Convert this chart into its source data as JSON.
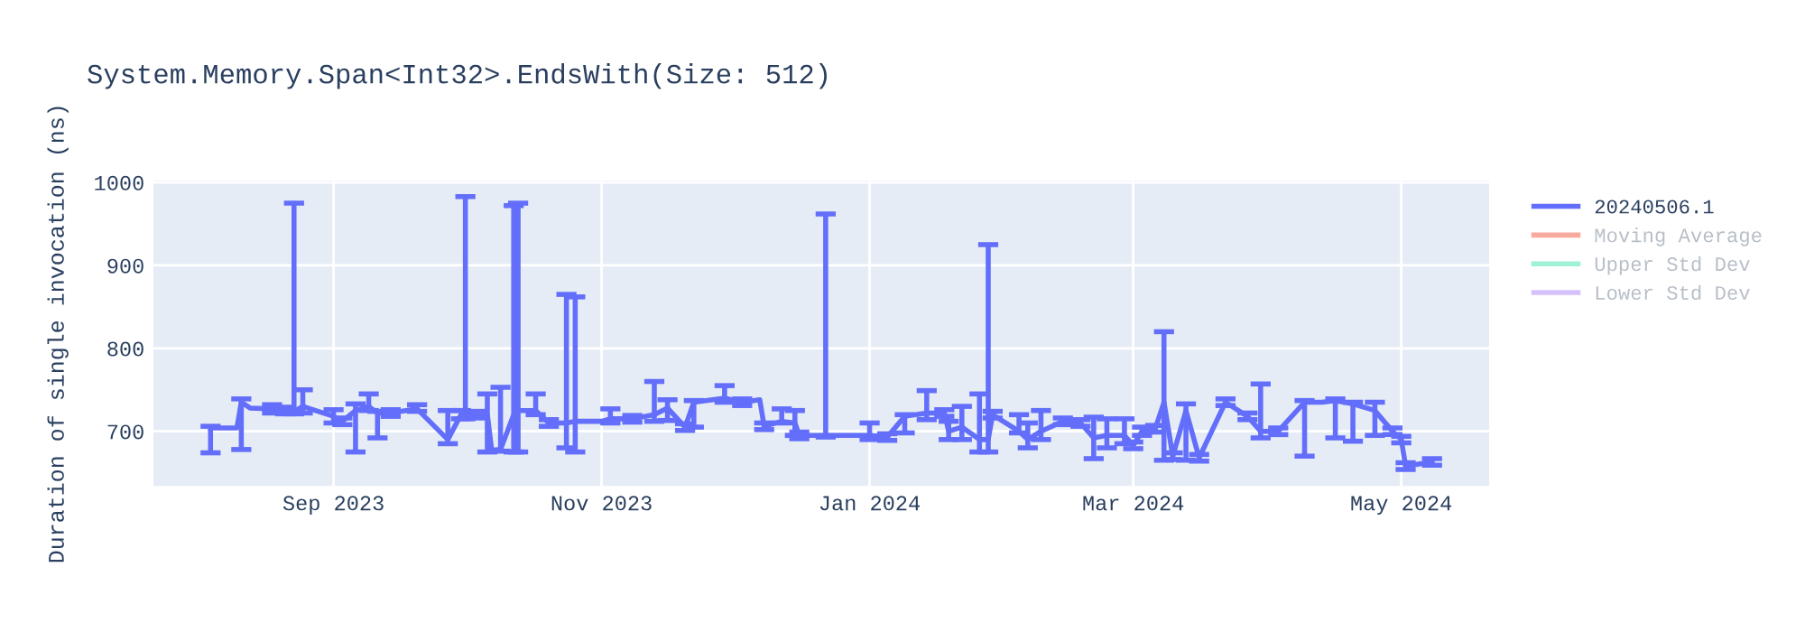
{
  "chart_data": {
    "type": "line",
    "title": "System.Memory.Span<Int32>.EndsWith(Size: 512)",
    "ylabel": "Duration of single invocation (ns)",
    "xlim": [
      "2023-07-22",
      "2024-05-21"
    ],
    "xticks": [
      {
        "value": "2023-09-01",
        "label": "Sep 2023"
      },
      {
        "value": "2023-11-01",
        "label": "Nov 2023"
      },
      {
        "value": "2024-01-01",
        "label": "Jan 2024"
      },
      {
        "value": "2024-03-01",
        "label": "Mar 2024"
      },
      {
        "value": "2024-05-01",
        "label": "May 2024"
      }
    ],
    "ylim": [
      634,
      1002
    ],
    "yticks": [
      700,
      800,
      900,
      1000
    ],
    "grid": true,
    "legend": "right",
    "marker": "none",
    "line_style": "solid",
    "series": [
      {
        "name": "20240506.1",
        "color": "#636efa",
        "x": [
          "2023-08-04",
          "2023-08-10",
          "2023-08-11",
          "2023-08-13",
          "2023-08-18",
          "2023-08-21",
          "2023-08-23",
          "2023-08-25",
          "2023-09-01",
          "2023-09-03",
          "2023-09-06",
          "2023-09-09",
          "2023-09-11",
          "2023-09-14",
          "2023-09-20",
          "2023-09-27",
          "2023-09-30",
          "2023-10-01",
          "2023-10-04",
          "2023-10-06",
          "2023-10-07",
          "2023-10-09",
          "2023-10-12",
          "2023-10-13",
          "2023-10-17",
          "2023-10-20",
          "2023-10-24",
          "2023-10-26",
          "2023-11-01",
          "2023-11-03",
          "2023-11-08",
          "2023-11-13",
          "2023-11-16",
          "2023-11-20",
          "2023-11-22",
          "2023-11-29",
          "2023-12-03",
          "2023-12-07",
          "2023-12-08",
          "2023-12-12",
          "2023-12-15",
          "2023-12-16",
          "2023-12-22",
          "2024-01-01",
          "2024-01-05",
          "2024-01-09",
          "2024-01-14",
          "2024-01-18",
          "2024-01-19",
          "2024-01-22",
          "2024-01-26",
          "2024-01-28",
          "2024-01-29",
          "2024-02-04",
          "2024-02-06",
          "2024-02-09",
          "2024-02-14",
          "2024-02-18",
          "2024-02-21",
          "2024-02-24",
          "2024-02-28",
          "2024-03-01",
          "2024-03-03",
          "2024-03-06",
          "2024-03-08",
          "2024-03-10",
          "2024-03-13",
          "2024-03-16",
          "2024-03-22",
          "2024-03-27",
          "2024-03-30",
          "2024-04-03",
          "2024-04-09",
          "2024-04-13",
          "2024-04-16",
          "2024-04-20",
          "2024-04-25",
          "2024-04-29",
          "2024-05-01",
          "2024-05-02",
          "2024-05-08"
        ],
        "values": [
          704,
          704,
          735,
          728,
          727,
          725,
          724,
          730,
          718,
          712,
          725,
          730,
          722,
          722,
          727,
          690,
          720,
          720,
          720,
          720,
          677,
          678,
          720,
          725,
          725,
          710,
          710,
          712,
          712,
          715,
          715,
          720,
          728,
          705,
          735,
          740,
          735,
          738,
          706,
          712,
          710,
          695,
          695,
          695,
          693,
          718,
          722,
          722,
          700,
          705,
          690,
          690,
          720,
          700,
          690,
          700,
          712,
          710,
          692,
          695,
          695,
          683,
          700,
          703,
          735,
          670,
          725,
          668,
          735,
          718,
          700,
          700,
          735,
          735,
          737,
          733,
          725,
          700,
          690,
          658,
          663
        ],
        "errors": [
          [
            674,
            706
          ],
          null,
          [
            678,
            739
          ],
          null,
          [
            722,
            732
          ],
          [
            721,
            729
          ],
          [
            721,
            975
          ],
          [
            722,
            750
          ],
          [
            710,
            726
          ],
          [
            708,
            716
          ],
          [
            675,
            733
          ],
          [
            725,
            745
          ],
          [
            692,
            724
          ],
          [
            718,
            726
          ],
          [
            724,
            732
          ],
          [
            685,
            725
          ],
          [
            715,
            725
          ],
          [
            715,
            983
          ],
          [
            716,
            724
          ],
          [
            675,
            745
          ],
          null,
          [
            676,
            753
          ],
          [
            675,
            972
          ],
          [
            675,
            975
          ],
          [
            720,
            745
          ],
          [
            706,
            714
          ],
          [
            680,
            865
          ],
          [
            675,
            862
          ],
          null,
          [
            710,
            727
          ],
          [
            711,
            719
          ],
          [
            712,
            760
          ],
          [
            713,
            738
          ],
          [
            701,
            709
          ],
          [
            705,
            737
          ],
          [
            735,
            755
          ],
          [
            731,
            739
          ],
          null,
          [
            702,
            710
          ],
          [
            710,
            727
          ],
          [
            695,
            725
          ],
          [
            691,
            699
          ],
          [
            693,
            962
          ],
          [
            690,
            710
          ],
          [
            689,
            697
          ],
          [
            698,
            720
          ],
          [
            714,
            749
          ],
          [
            718,
            726
          ],
          [
            690,
            712
          ],
          [
            690,
            730
          ],
          [
            675,
            745
          ],
          [
            675,
            925
          ],
          [
            716,
            724
          ],
          [
            698,
            720
          ],
          [
            680,
            710
          ],
          [
            690,
            725
          ],
          [
            708,
            716
          ],
          [
            706,
            714
          ],
          [
            667,
            717
          ],
          [
            680,
            715
          ],
          [
            685,
            715
          ],
          [
            679,
            687
          ],
          [
            695,
            705
          ],
          [
            699,
            707
          ],
          [
            665,
            820
          ],
          [
            666,
            674
          ],
          [
            665,
            733
          ],
          [
            664,
            672
          ],
          [
            731,
            739
          ],
          [
            714,
            722
          ],
          [
            692,
            757
          ],
          [
            696,
            704
          ],
          [
            670,
            737
          ],
          null,
          [
            692,
            739
          ],
          [
            688,
            735
          ],
          [
            695,
            735
          ],
          [
            696,
            704
          ],
          [
            686,
            694
          ],
          [
            654,
            662
          ],
          [
            659,
            667
          ]
        ]
      },
      {
        "name": "Moving Average",
        "color": "#f7aa9d"
      },
      {
        "name": "Upper Std Dev",
        "color": "#9ff2d7"
      },
      {
        "name": "Lower Std Dev",
        "color": "#d6c1fb"
      }
    ]
  }
}
